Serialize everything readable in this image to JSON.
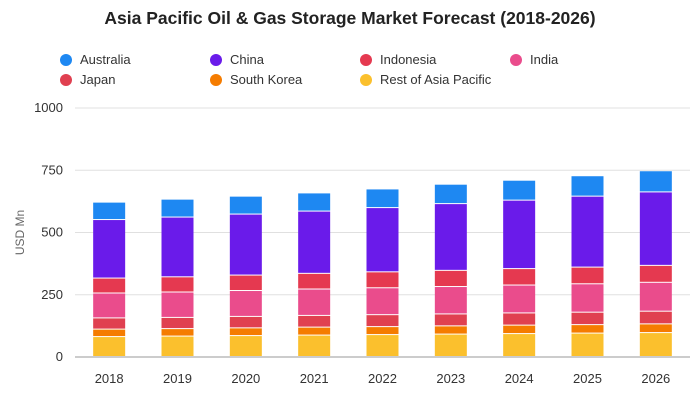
{
  "chart_data": {
    "type": "bar",
    "stacked": true,
    "title": "Asia Pacific Oil & Gas Storage Market Forecast (2018-2026)",
    "xlabel": "",
    "ylabel": "USD Mn",
    "ylim": [
      0,
      1000
    ],
    "yticks": [
      0,
      250,
      500,
      750,
      1000
    ],
    "grid": true,
    "legend_position": "top",
    "categories": [
      "2018",
      "2019",
      "2020",
      "2021",
      "2022",
      "2023",
      "2024",
      "2025",
      "2026"
    ],
    "series": [
      {
        "name": "Rest of Asia Pacific",
        "color": "#fbc02d",
        "values": [
          80,
          82,
          84,
          86,
          88,
          90,
          92,
          94,
          96
        ]
      },
      {
        "name": "South Korea",
        "color": "#f57c00",
        "values": [
          30,
          30,
          31,
          32,
          32,
          33,
          34,
          34,
          35
        ]
      },
      {
        "name": "Japan",
        "color": "#e04050",
        "values": [
          45,
          45,
          46,
          47,
          48,
          48,
          49,
          50,
          51
        ]
      },
      {
        "name": "India",
        "color": "#ea4c8c",
        "values": [
          100,
          102,
          104,
          106,
          108,
          110,
          112,
          114,
          116
        ]
      },
      {
        "name": "Indonesia",
        "color": "#e53950",
        "values": [
          60,
          61,
          62,
          63,
          64,
          65,
          66,
          67,
          68
        ]
      },
      {
        "name": "China",
        "color": "#6a1bea",
        "values": [
          235,
          240,
          245,
          250,
          258,
          268,
          275,
          285,
          295
        ]
      },
      {
        "name": "Australia",
        "color": "#1e88f2",
        "values": [
          70,
          72,
          72,
          73,
          75,
          78,
          80,
          82,
          85
        ]
      }
    ],
    "legend_order": [
      "Australia",
      "China",
      "Indonesia",
      "India",
      "Japan",
      "South Korea",
      "Rest of Asia Pacific"
    ]
  }
}
